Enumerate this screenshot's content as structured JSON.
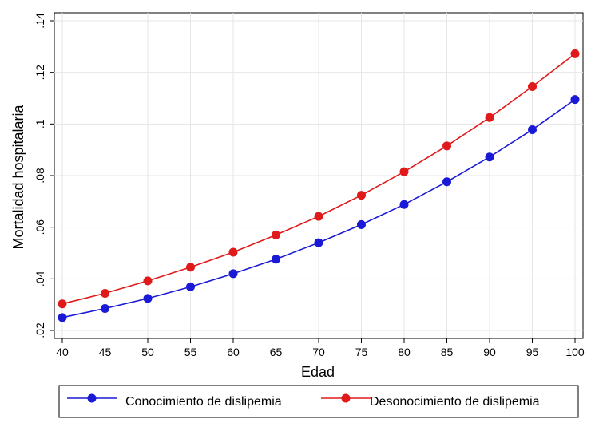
{
  "chart_data": {
    "type": "line",
    "xlabel": "Edad",
    "ylabel": "Mortalidad hospitalaria",
    "x": [
      40,
      45,
      50,
      55,
      60,
      65,
      70,
      75,
      80,
      85,
      90,
      95,
      100
    ],
    "xlim": [
      40,
      100
    ],
    "ylim": [
      0.02,
      0.14
    ],
    "xticks": [
      40,
      45,
      50,
      55,
      60,
      65,
      70,
      75,
      80,
      85,
      90,
      95,
      100
    ],
    "yticks": [
      0.02,
      0.04,
      0.06,
      0.08,
      0.1,
      0.12,
      0.14
    ],
    "ytick_labels": [
      ".02",
      ".04",
      ".06",
      ".08",
      ".1",
      ".12",
      ".14"
    ],
    "grid": true,
    "legend_position": "bottom",
    "series": [
      {
        "name": "Conocimiento de dislipemia",
        "color": "#1a1ad6",
        "values": [
          0.025,
          0.0285,
          0.0324,
          0.0369,
          0.042,
          0.0476,
          0.054,
          0.061,
          0.0688,
          0.0776,
          0.0872,
          0.0978,
          0.1095
        ]
      },
      {
        "name": "Desonocimiento de dislipemia",
        "color": "#e01a1a",
        "values": [
          0.0303,
          0.0344,
          0.0392,
          0.0445,
          0.0503,
          0.057,
          0.0642,
          0.0724,
          0.0815,
          0.0915,
          0.1025,
          0.1145,
          0.1272
        ]
      }
    ]
  }
}
